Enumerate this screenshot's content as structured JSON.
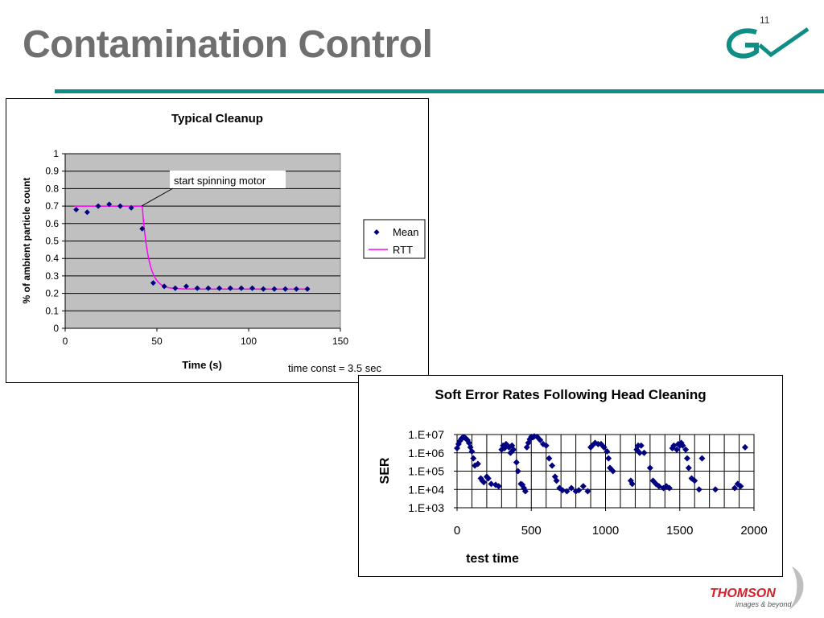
{
  "slide": {
    "title": "Contamination Control",
    "page_number": "11"
  },
  "branding": {
    "top_logo_icon": "gv-logo-icon",
    "bottom_logo_text": "THOMSON",
    "bottom_logo_tagline": "images & beyond",
    "bottom_logo_icon": "thomson-swoosh-icon"
  },
  "colors": {
    "title": "#6f6f6f",
    "rule": "#0e8e84",
    "marker": "#000080",
    "rtt_line": "#ff00ff",
    "plot_bg_cleanup": "#c0c0c0",
    "logo_teal": "#0e8e84",
    "thomson_red": "#d4202a"
  },
  "chart_data": [
    {
      "type": "scatter",
      "title": "Typical Cleanup",
      "xlabel": "Time (s)",
      "ylabel": "% of ambient particle count",
      "xlim": [
        0,
        150
      ],
      "ylim": [
        0,
        1
      ],
      "xticks": [
        "0",
        "50",
        "100",
        "150"
      ],
      "yticks": [
        "0",
        "0.1",
        "0.2",
        "0.3",
        "0.4",
        "0.5",
        "0.6",
        "0.7",
        "0.8",
        "0.9",
        "1"
      ],
      "grid": "horizontal",
      "legend_position": "right",
      "annotations": [
        "start spinning motor",
        "time const = 3.5 sec"
      ],
      "series": [
        {
          "name": "Mean",
          "kind": "markers",
          "points": [
            [
              6,
              0.68
            ],
            [
              12,
              0.665
            ],
            [
              18,
              0.7
            ],
            [
              24,
              0.71
            ],
            [
              30,
              0.7
            ],
            [
              36,
              0.69
            ],
            [
              42,
              0.57
            ],
            [
              48,
              0.26
            ],
            [
              54,
              0.24
            ],
            [
              60,
              0.23
            ],
            [
              66,
              0.24
            ],
            [
              72,
              0.23
            ],
            [
              78,
              0.23
            ],
            [
              84,
              0.23
            ],
            [
              90,
              0.23
            ],
            [
              96,
              0.23
            ],
            [
              102,
              0.23
            ],
            [
              108,
              0.225
            ],
            [
              114,
              0.225
            ],
            [
              120,
              0.225
            ],
            [
              126,
              0.225
            ],
            [
              132,
              0.225
            ]
          ]
        },
        {
          "name": "RTT",
          "kind": "line",
          "start": [
            5,
            0.7
          ],
          "step_at": 42,
          "high": 0.7,
          "low": 0.225,
          "time_constant": 3.5,
          "end_x": 132
        }
      ]
    },
    {
      "type": "scatter",
      "title": "Soft Error Rates Following Head Cleaning",
      "xlabel": "test time",
      "ylabel": "SER",
      "xlim": [
        0,
        2000
      ],
      "ylim": [
        1000,
        10000000
      ],
      "yscale": "log",
      "xticks": [
        "0",
        "500",
        "1000",
        "1500",
        "2000"
      ],
      "yticks": [
        "1.E+03",
        "1.E+04",
        "1.E+05",
        "1.E+06",
        "1.E+07"
      ],
      "grid": "both",
      "series": [
        {
          "kind": "markers",
          "points": [
            [
              0,
              1800000
            ],
            [
              10,
              3000000
            ],
            [
              20,
              4500000
            ],
            [
              30,
              6000000
            ],
            [
              40,
              7000000
            ],
            [
              50,
              6800000
            ],
            [
              60,
              6000000
            ],
            [
              70,
              5000000
            ],
            [
              80,
              3500000
            ],
            [
              90,
              2000000
            ],
            [
              100,
              1200000
            ],
            [
              110,
              500000
            ],
            [
              120,
              200000
            ],
            [
              140,
              250000
            ],
            [
              160,
              40000
            ],
            [
              170,
              30000
            ],
            [
              180,
              25000
            ],
            [
              200,
              50000
            ],
            [
              210,
              40000
            ],
            [
              230,
              20000
            ],
            [
              260,
              18000
            ],
            [
              280,
              15000
            ],
            [
              300,
              1500000
            ],
            [
              310,
              2500000
            ],
            [
              320,
              1800000
            ],
            [
              330,
              3000000
            ],
            [
              340,
              2500000
            ],
            [
              350,
              2000000
            ],
            [
              360,
              1000000
            ],
            [
              370,
              2500000
            ],
            [
              380,
              1500000
            ],
            [
              400,
              300000
            ],
            [
              410,
              100000
            ],
            [
              430,
              20000
            ],
            [
              440,
              18000
            ],
            [
              450,
              12000
            ],
            [
              460,
              8000
            ],
            [
              470,
              2000000
            ],
            [
              480,
              3500000
            ],
            [
              490,
              5500000
            ],
            [
              500,
              7500000
            ],
            [
              510,
              7000000
            ],
            [
              520,
              8000000
            ],
            [
              540,
              7500000
            ],
            [
              560,
              5000000
            ],
            [
              580,
              3000000
            ],
            [
              600,
              2500000
            ],
            [
              620,
              500000
            ],
            [
              640,
              200000
            ],
            [
              660,
              50000
            ],
            [
              670,
              30000
            ],
            [
              690,
              12000
            ],
            [
              710,
              9000
            ],
            [
              740,
              8000
            ],
            [
              770,
              12000
            ],
            [
              800,
              8000
            ],
            [
              820,
              9000
            ],
            [
              850,
              15000
            ],
            [
              880,
              8000
            ],
            [
              900,
              2000000
            ],
            [
              910,
              2500000
            ],
            [
              930,
              3500000
            ],
            [
              950,
              3000000
            ],
            [
              970,
              3000000
            ],
            [
              990,
              2000000
            ],
            [
              1010,
              1200000
            ],
            [
              1020,
              500000
            ],
            [
              1030,
              150000
            ],
            [
              1050,
              100000
            ],
            [
              1170,
              30000
            ],
            [
              1180,
              20000
            ],
            [
              1210,
              1500000
            ],
            [
              1220,
              2500000
            ],
            [
              1230,
              1000000
            ],
            [
              1240,
              2500000
            ],
            [
              1260,
              1000000
            ],
            [
              1300,
              150000
            ],
            [
              1320,
              30000
            ],
            [
              1340,
              20000
            ],
            [
              1360,
              15000
            ],
            [
              1390,
              12000
            ],
            [
              1410,
              15000
            ],
            [
              1430,
              12000
            ],
            [
              1450,
              1800000
            ],
            [
              1460,
              2500000
            ],
            [
              1480,
              1500000
            ],
            [
              1490,
              3000000
            ],
            [
              1500,
              2500000
            ],
            [
              1510,
              3500000
            ],
            [
              1520,
              2500000
            ],
            [
              1540,
              1500000
            ],
            [
              1550,
              500000
            ],
            [
              1560,
              150000
            ],
            [
              1580,
              40000
            ],
            [
              1600,
              30000
            ],
            [
              1630,
              10000
            ],
            [
              1650,
              500000
            ],
            [
              1740,
              10000
            ],
            [
              1870,
              12000
            ],
            [
              1890,
              20000
            ],
            [
              1910,
              15000
            ],
            [
              1940,
              2000000
            ]
          ]
        }
      ]
    }
  ]
}
